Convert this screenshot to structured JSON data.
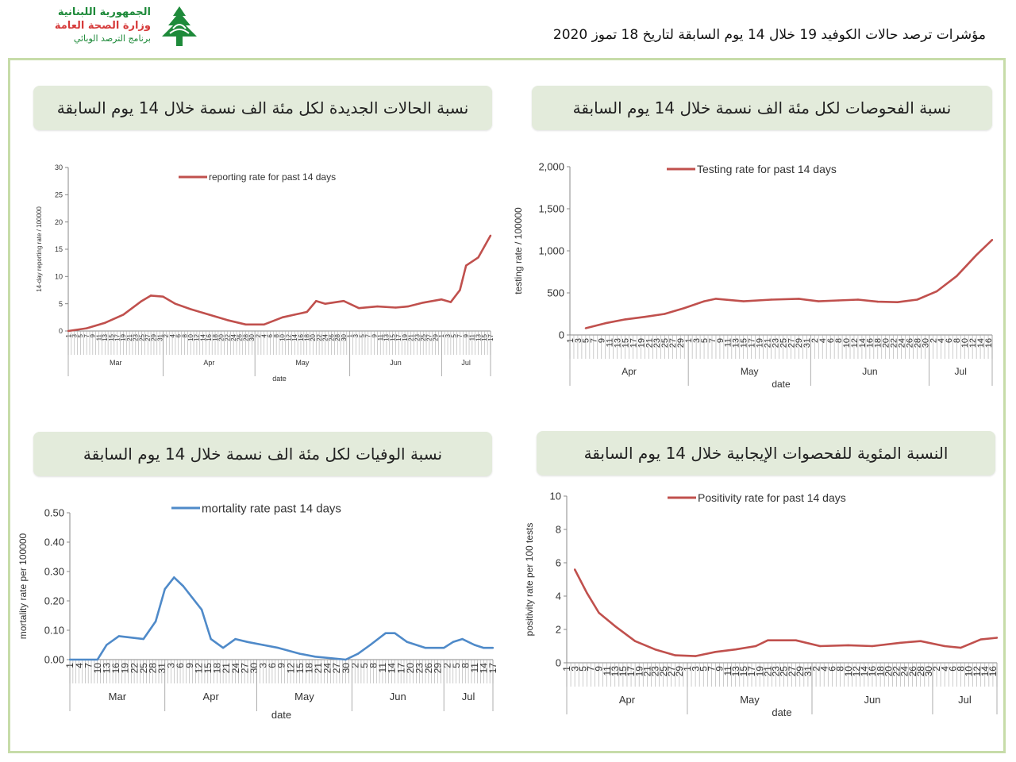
{
  "header": {
    "logo_line1": "الجمهورية اللبنانية",
    "logo_line2": "وزارة الصحة العامة",
    "logo_line3": "برنامج الترصد الوبائي",
    "logo_icon": "cedar-tree-icon",
    "title": "مؤشرات ترصد حالات الكوفيد 19 خلال 14 يوم السابقة لتاريخ 18 تموز 2020"
  },
  "panels": {
    "reporting_title": "نسبة الحالات الجديدة لكل مئة الف نسمة خلال 14 يوم السابقة",
    "testing_title": "نسبة الفحوصات لكل مئة الف نسمة خلال 14 يوم السابقة",
    "mortality_title": "نسبة الوفيات لكل مئة الف نسمة خلال 14 يوم السابقة",
    "positivity_title": "النسبة المئوية للفحصوات الإيجابية خلال 14 يوم السابقة"
  },
  "chart_data": [
    {
      "id": "reporting",
      "type": "line",
      "color": "#c0504d",
      "ylabel": "14-day reporting rate / 100000",
      "xlabel": "date",
      "ylim": [
        0,
        30
      ],
      "yticks": [
        "0",
        "5",
        "10",
        "15",
        "20",
        "25",
        "30"
      ],
      "legend": "reporting rate for past 14 days",
      "legend_position": "top-center",
      "x_start": "2020-03-01",
      "x_end": "2020-07-17",
      "tick_step_days": 2,
      "months": [
        "Mar",
        "Apr",
        "May",
        "Jun",
        "Jul"
      ],
      "series": [
        {
          "name": "reporting rate for past 14 days",
          "x": [
            "2020-03-01",
            "2020-03-07",
            "2020-03-13",
            "2020-03-19",
            "2020-03-25",
            "2020-03-28",
            "2020-04-01",
            "2020-04-05",
            "2020-04-10",
            "2020-04-16",
            "2020-04-22",
            "2020-04-28",
            "2020-05-04",
            "2020-05-10",
            "2020-05-14",
            "2020-05-18",
            "2020-05-21",
            "2020-05-24",
            "2020-05-30",
            "2020-06-04",
            "2020-06-10",
            "2020-06-16",
            "2020-06-20",
            "2020-06-25",
            "2020-07-01",
            "2020-07-04",
            "2020-07-07",
            "2020-07-09",
            "2020-07-13",
            "2020-07-17"
          ],
          "y": [
            0,
            0.5,
            1.5,
            3,
            5.5,
            6.5,
            6.3,
            5,
            4,
            3,
            2,
            1.2,
            1.2,
            2.5,
            3,
            3.5,
            5.5,
            5,
            5.5,
            4.2,
            4.5,
            4.3,
            4.5,
            5.2,
            5.8,
            5.3,
            7.5,
            12,
            13.5,
            17.5
          ]
        }
      ]
    },
    {
      "id": "testing",
      "type": "line",
      "color": "#c0504d",
      "ylabel": "testing rate / 100000",
      "xlabel": "date",
      "ylim": [
        0,
        2000
      ],
      "yticks": [
        "0",
        "500",
        "1,000",
        "1,500",
        "2,000"
      ],
      "legend": "Testing rate for past 14 days",
      "legend_position": "top-center",
      "x_start": "2020-04-01",
      "x_end": "2020-07-17",
      "tick_step_days": 2,
      "months": [
        "Apr",
        "May",
        "Jun",
        "Jul"
      ],
      "series": [
        {
          "name": "Testing rate for past 14 days",
          "x": [
            "2020-04-05",
            "2020-04-10",
            "2020-04-15",
            "2020-04-20",
            "2020-04-25",
            "2020-04-30",
            "2020-05-05",
            "2020-05-08",
            "2020-05-15",
            "2020-05-22",
            "2020-05-29",
            "2020-06-03",
            "2020-06-08",
            "2020-06-13",
            "2020-06-18",
            "2020-06-23",
            "2020-06-28",
            "2020-07-03",
            "2020-07-08",
            "2020-07-13",
            "2020-07-17"
          ],
          "y": [
            80,
            140,
            185,
            215,
            250,
            320,
            400,
            430,
            400,
            420,
            430,
            400,
            410,
            420,
            395,
            390,
            420,
            520,
            700,
            950,
            1130
          ]
        }
      ]
    },
    {
      "id": "mortality",
      "type": "line",
      "color": "#4f8ac9",
      "ylabel": "mortality rate per 100000",
      "xlabel": "date",
      "ylim": [
        0,
        0.5
      ],
      "yticks": [
        "0.00",
        "0.10",
        "0.20",
        "0.30",
        "0.40",
        "0.50"
      ],
      "legend": "mortality rate past 14 days",
      "legend_position": "top-center",
      "x_start": "2020-03-01",
      "x_end": "2020-07-17",
      "tick_step_days": 3,
      "months": [
        "Mar",
        "Apr",
        "May",
        "Jun",
        "Jul"
      ],
      "series": [
        {
          "name": "mortality rate past 14 days",
          "x": [
            "2020-03-01",
            "2020-03-10",
            "2020-03-13",
            "2020-03-17",
            "2020-03-25",
            "2020-03-29",
            "2020-04-01",
            "2020-04-04",
            "2020-04-07",
            "2020-04-10",
            "2020-04-13",
            "2020-04-16",
            "2020-04-20",
            "2020-04-24",
            "2020-04-28",
            "2020-05-03",
            "2020-05-08",
            "2020-05-15",
            "2020-05-20",
            "2020-05-30",
            "2020-06-03",
            "2020-06-07",
            "2020-06-12",
            "2020-06-15",
            "2020-06-19",
            "2020-06-25",
            "2020-07-01",
            "2020-07-04",
            "2020-07-07",
            "2020-07-11",
            "2020-07-14",
            "2020-07-17"
          ],
          "y": [
            0,
            0,
            0.05,
            0.08,
            0.07,
            0.13,
            0.24,
            0.28,
            0.25,
            0.21,
            0.17,
            0.07,
            0.04,
            0.07,
            0.06,
            0.05,
            0.04,
            0.02,
            0.01,
            0,
            0.02,
            0.05,
            0.09,
            0.09,
            0.06,
            0.04,
            0.04,
            0.06,
            0.07,
            0.05,
            0.04,
            0.04
          ]
        }
      ]
    },
    {
      "id": "positivity",
      "type": "line",
      "color": "#c0504d",
      "ylabel": "positivity rate per 100 tests",
      "xlabel": "date",
      "ylim": [
        0,
        10
      ],
      "yticks": [
        "0",
        "2",
        "4",
        "6",
        "8",
        "10"
      ],
      "legend": "Positivity rate for past 14 days",
      "legend_position": "top-center",
      "x_start": "2020-04-01",
      "x_end": "2020-07-17",
      "tick_step_days": 2,
      "months": [
        "Apr",
        "May",
        "Jun",
        "Jul"
      ],
      "series": [
        {
          "name": "Positivity rate for past 14 days",
          "x": [
            "2020-04-03",
            "2020-04-06",
            "2020-04-09",
            "2020-04-13",
            "2020-04-18",
            "2020-04-23",
            "2020-04-28",
            "2020-05-03",
            "2020-05-08",
            "2020-05-13",
            "2020-05-18",
            "2020-05-21",
            "2020-05-28",
            "2020-06-03",
            "2020-06-10",
            "2020-06-16",
            "2020-06-23",
            "2020-06-28",
            "2020-07-04",
            "2020-07-08",
            "2020-07-13",
            "2020-07-17"
          ],
          "y": [
            5.6,
            4.2,
            3,
            2.2,
            1.3,
            0.8,
            0.45,
            0.4,
            0.65,
            0.8,
            1,
            1.35,
            1.35,
            1,
            1.05,
            1,
            1.2,
            1.3,
            1,
            0.9,
            1.4,
            1.5
          ]
        }
      ]
    }
  ]
}
